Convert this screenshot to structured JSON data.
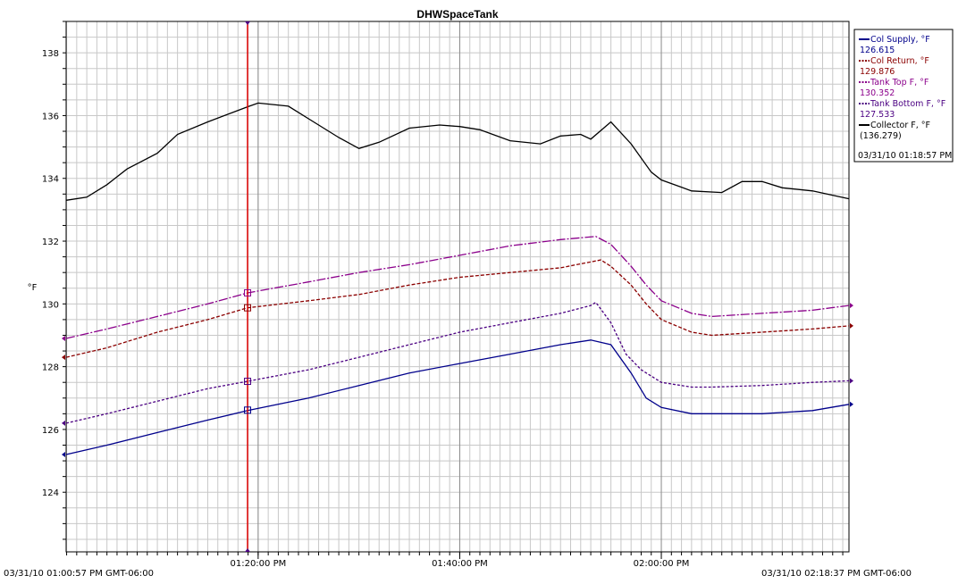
{
  "chart_data": {
    "type": "line",
    "title": "DHWSpaceTank",
    "ylabel": "°F",
    "ylim": [
      122.1,
      139
    ],
    "y_ticks": [
      "124",
      "126",
      "128",
      "130",
      "132",
      "134",
      "136",
      "138"
    ],
    "x_range": [
      "01:00:57",
      "02:18:37"
    ],
    "x_tick_labels": [
      {
        "time": "01:20:00",
        "label": "01:20:00 PM"
      },
      {
        "time": "01:40:00",
        "label": "01:40:00 PM"
      },
      {
        "time": "02:00:00",
        "label": "02:00:00 PM"
      }
    ],
    "start_label": "03/31/10 01:00:57 PM GMT-06:00",
    "end_label": "03/31/10 02:18:37 PM GMT-06:00",
    "cursor": {
      "time": "01:18:57",
      "label": "03/31/10 01:18:57 PM"
    },
    "grid": true,
    "legend_position": "right",
    "series": [
      {
        "name": "Col Supply, °F",
        "value": "126.615",
        "color": "#00008b",
        "dash": "solid",
        "x": [
          "01:00:57",
          "01:05:00",
          "01:10:00",
          "01:15:00",
          "01:18:57",
          "01:25:00",
          "01:30:00",
          "01:35:00",
          "01:40:00",
          "01:45:00",
          "01:50:00",
          "01:53:00",
          "01:55:00",
          "01:57:00",
          "01:58:30",
          "02:00:00",
          "02:03:00",
          "02:05:00",
          "02:10:00",
          "02:15:00",
          "02:18:37"
        ],
        "y": [
          125.2,
          125.5,
          125.9,
          126.3,
          126.6,
          127.0,
          127.4,
          127.8,
          128.1,
          128.4,
          128.7,
          128.85,
          128.7,
          127.8,
          127.0,
          126.7,
          126.5,
          126.5,
          126.5,
          126.6,
          126.8
        ]
      },
      {
        "name": "Col Return, °F",
        "value": "129.876",
        "color": "#8b0000",
        "dash": "4,2",
        "x": [
          "01:00:57",
          "01:05:00",
          "01:10:00",
          "01:15:00",
          "01:18:57",
          "01:25:00",
          "01:30:00",
          "01:35:00",
          "01:40:00",
          "01:45:00",
          "01:50:00",
          "01:54:00",
          "01:55:00",
          "01:57:00",
          "01:58:30",
          "02:00:00",
          "02:03:00",
          "02:05:00",
          "02:10:00",
          "02:15:00",
          "02:18:37"
        ],
        "y": [
          128.3,
          128.6,
          129.1,
          129.5,
          129.876,
          130.1,
          130.3,
          130.6,
          130.85,
          131.0,
          131.15,
          131.4,
          131.2,
          130.6,
          130.0,
          129.5,
          129.1,
          129.0,
          129.1,
          129.2,
          129.3
        ]
      },
      {
        "name": "Tank Top F, °F",
        "value": "130.352",
        "color": "#8b008b",
        "dash": "10,2,2,2",
        "x": [
          "01:00:57",
          "01:05:00",
          "01:10:00",
          "01:15:00",
          "01:18:57",
          "01:25:00",
          "01:30:00",
          "01:35:00",
          "01:40:00",
          "01:45:00",
          "01:50:00",
          "01:53:30",
          "01:55:00",
          "01:57:00",
          "01:58:30",
          "02:00:00",
          "02:03:00",
          "02:05:00",
          "02:10:00",
          "02:15:00",
          "02:18:37"
        ],
        "y": [
          128.9,
          129.2,
          129.6,
          130.0,
          130.352,
          130.7,
          131.0,
          131.25,
          131.55,
          131.85,
          132.05,
          132.15,
          131.9,
          131.2,
          130.6,
          130.1,
          129.7,
          129.6,
          129.7,
          129.8,
          129.95
        ]
      },
      {
        "name": "Tank Bottom F, °F",
        "value": "127.533",
        "color": "#4b0082",
        "dash": "3,2",
        "x": [
          "01:00:57",
          "01:05:00",
          "01:10:00",
          "01:15:00",
          "01:18:57",
          "01:25:00",
          "01:30:00",
          "01:35:00",
          "01:40:00",
          "01:45:00",
          "01:50:00",
          "01:53:00",
          "01:53:30",
          "01:55:00",
          "01:56:30",
          "01:58:00",
          "02:00:00",
          "02:03:00",
          "02:05:00",
          "02:10:00",
          "02:15:00",
          "02:18:37"
        ],
        "y": [
          126.2,
          126.5,
          126.9,
          127.3,
          127.533,
          127.9,
          128.3,
          128.7,
          129.1,
          129.4,
          129.7,
          129.95,
          130.05,
          129.4,
          128.4,
          127.9,
          127.5,
          127.35,
          127.35,
          127.4,
          127.5,
          127.55
        ]
      },
      {
        "name": "Collector F, °F",
        "value": "(136.279)",
        "color": "#000000",
        "dash": "solid",
        "x": [
          "01:00:57",
          "01:03:00",
          "01:05:00",
          "01:07:00",
          "01:10:00",
          "01:12:00",
          "01:15:00",
          "01:18:57",
          "01:20:00",
          "01:23:00",
          "01:25:00",
          "01:28:00",
          "01:30:00",
          "01:32:00",
          "01:35:00",
          "01:38:00",
          "01:40:00",
          "01:42:00",
          "01:45:00",
          "01:48:00",
          "01:50:00",
          "01:52:00",
          "01:53:00",
          "01:55:00",
          "01:57:00",
          "01:59:00",
          "02:00:00",
          "02:03:00",
          "02:06:00",
          "02:08:00",
          "02:10:00",
          "02:12:00",
          "02:15:00",
          "02:18:37"
        ],
        "y": [
          133.3,
          133.4,
          133.8,
          134.3,
          134.8,
          135.4,
          135.8,
          136.279,
          136.4,
          136.3,
          135.9,
          135.3,
          134.95,
          135.15,
          135.6,
          135.7,
          135.65,
          135.55,
          135.2,
          135.1,
          135.35,
          135.4,
          135.25,
          135.8,
          135.1,
          134.2,
          133.95,
          133.6,
          133.55,
          133.9,
          133.9,
          133.7,
          133.6,
          133.35
        ]
      }
    ]
  }
}
